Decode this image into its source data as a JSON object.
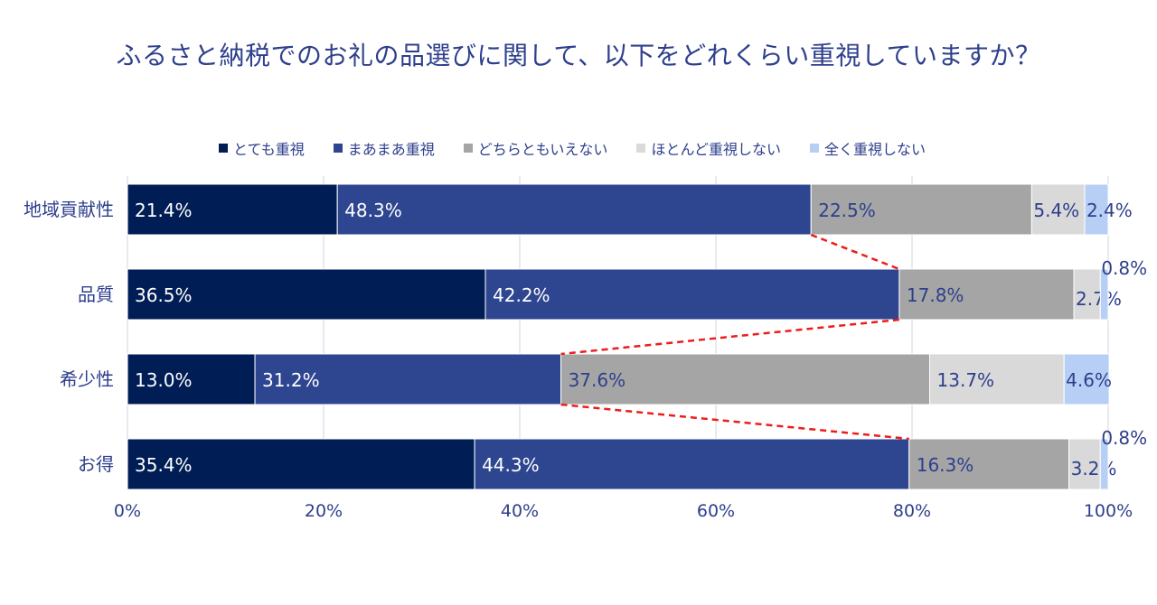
{
  "chart_data": {
    "type": "bar",
    "orientation": "horizontal",
    "stacked": true,
    "title": "ふるさと納税でのお礼の品選びに関して、以下をどれくらい重視していますか？",
    "categories": [
      "地域貢献性",
      "品質",
      "希少性",
      "お得"
    ],
    "series": [
      {
        "name": "とても重視",
        "color": "#001e55",
        "values": [
          21.4,
          36.5,
          13.0,
          35.4
        ]
      },
      {
        "name": "まあまあ重視",
        "color": "#2e4590",
        "values": [
          48.3,
          42.2,
          31.2,
          44.3
        ]
      },
      {
        "name": "どちらともいえない",
        "color": "#a5a5a5",
        "values": [
          22.5,
          17.8,
          37.6,
          16.3
        ]
      },
      {
        "name": "ほとんど重視しない",
        "color": "#d9d9d9",
        "values": [
          5.4,
          2.7,
          13.7,
          3.2
        ]
      },
      {
        "name": "全く重視しない",
        "color": "#b7cff5",
        "values": [
          2.4,
          0.8,
          4.6,
          0.8
        ]
      }
    ],
    "data_labels": [
      [
        "21.4%",
        "48.3%",
        "22.5%",
        "5.4%",
        "2.4%"
      ],
      [
        "36.5%",
        "42.2%",
        "17.8%",
        "2.7%",
        "0.8%"
      ],
      [
        "13.0%",
        "31.2%",
        "37.6%",
        "13.7%",
        "4.6%"
      ],
      [
        "35.4%",
        "44.3%",
        "16.3%",
        "3.2%",
        "0.8%"
      ]
    ],
    "xlim": [
      0,
      100
    ],
    "xticks": [
      "0%",
      "20%",
      "40%",
      "60%",
      "80%",
      "100%"
    ],
    "grid": true,
    "legend_position": "top",
    "annotation": "red dashed connector lines linking cumulative 'とても重視'+'まあまあ重視' between rows"
  }
}
